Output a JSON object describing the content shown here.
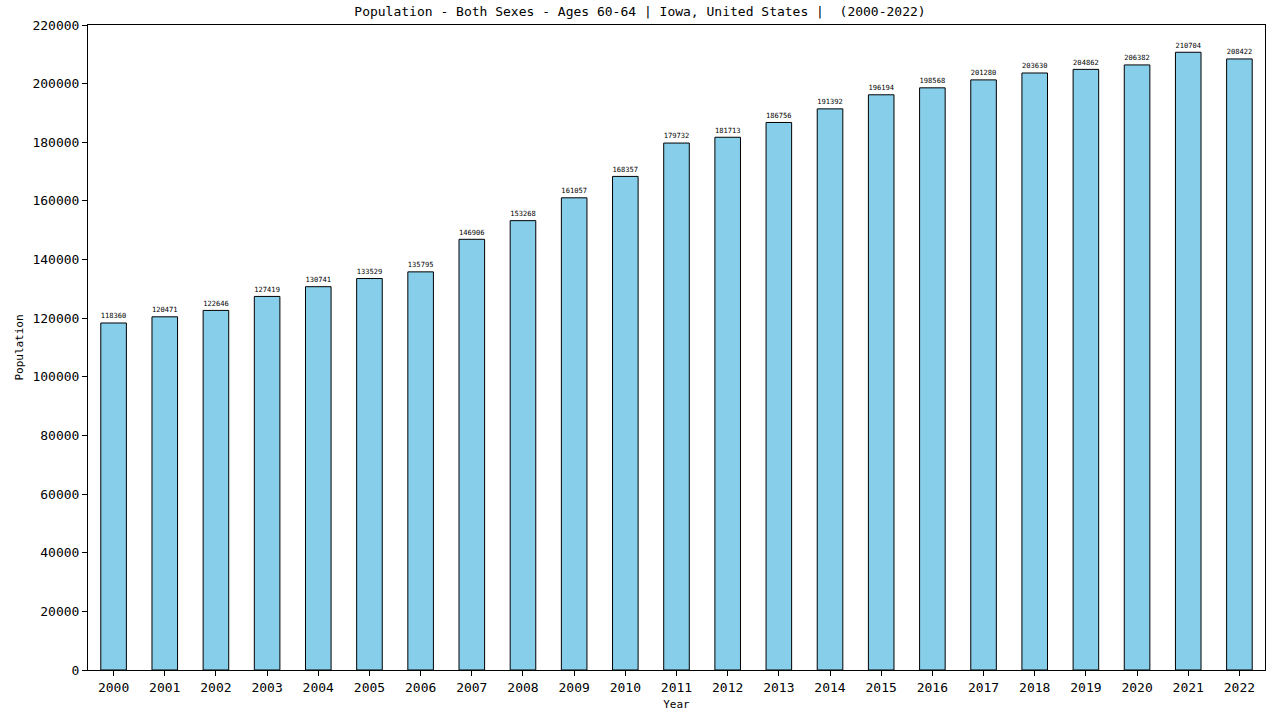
{
  "chart_data": {
    "type": "bar",
    "title": "Population - Both Sexes - Ages 60-64 | Iowa, United States |  (2000-2022)",
    "x_label": "Year",
    "y_label": "Population",
    "categories": [
      "2000",
      "2001",
      "2002",
      "2003",
      "2004",
      "2005",
      "2006",
      "2007",
      "2008",
      "2009",
      "2010",
      "2011",
      "2012",
      "2013",
      "2014",
      "2015",
      "2016",
      "2017",
      "2018",
      "2019",
      "2020",
      "2021",
      "2022"
    ],
    "values": [
      118360,
      120471,
      122646,
      127419,
      130741,
      133529,
      135795,
      146906,
      153268,
      161057,
      168357,
      179732,
      181713,
      186756,
      191392,
      196194,
      198568,
      201280,
      203630,
      204862,
      206382,
      210704,
      208422
    ],
    "color": "#87ceeb",
    "ylim": [
      0,
      220000
    ],
    "yticks": [
      0,
      20000,
      40000,
      60000,
      80000,
      100000,
      120000,
      140000,
      160000,
      180000,
      200000,
      220000
    ],
    "grid": false,
    "data_labels": true
  }
}
